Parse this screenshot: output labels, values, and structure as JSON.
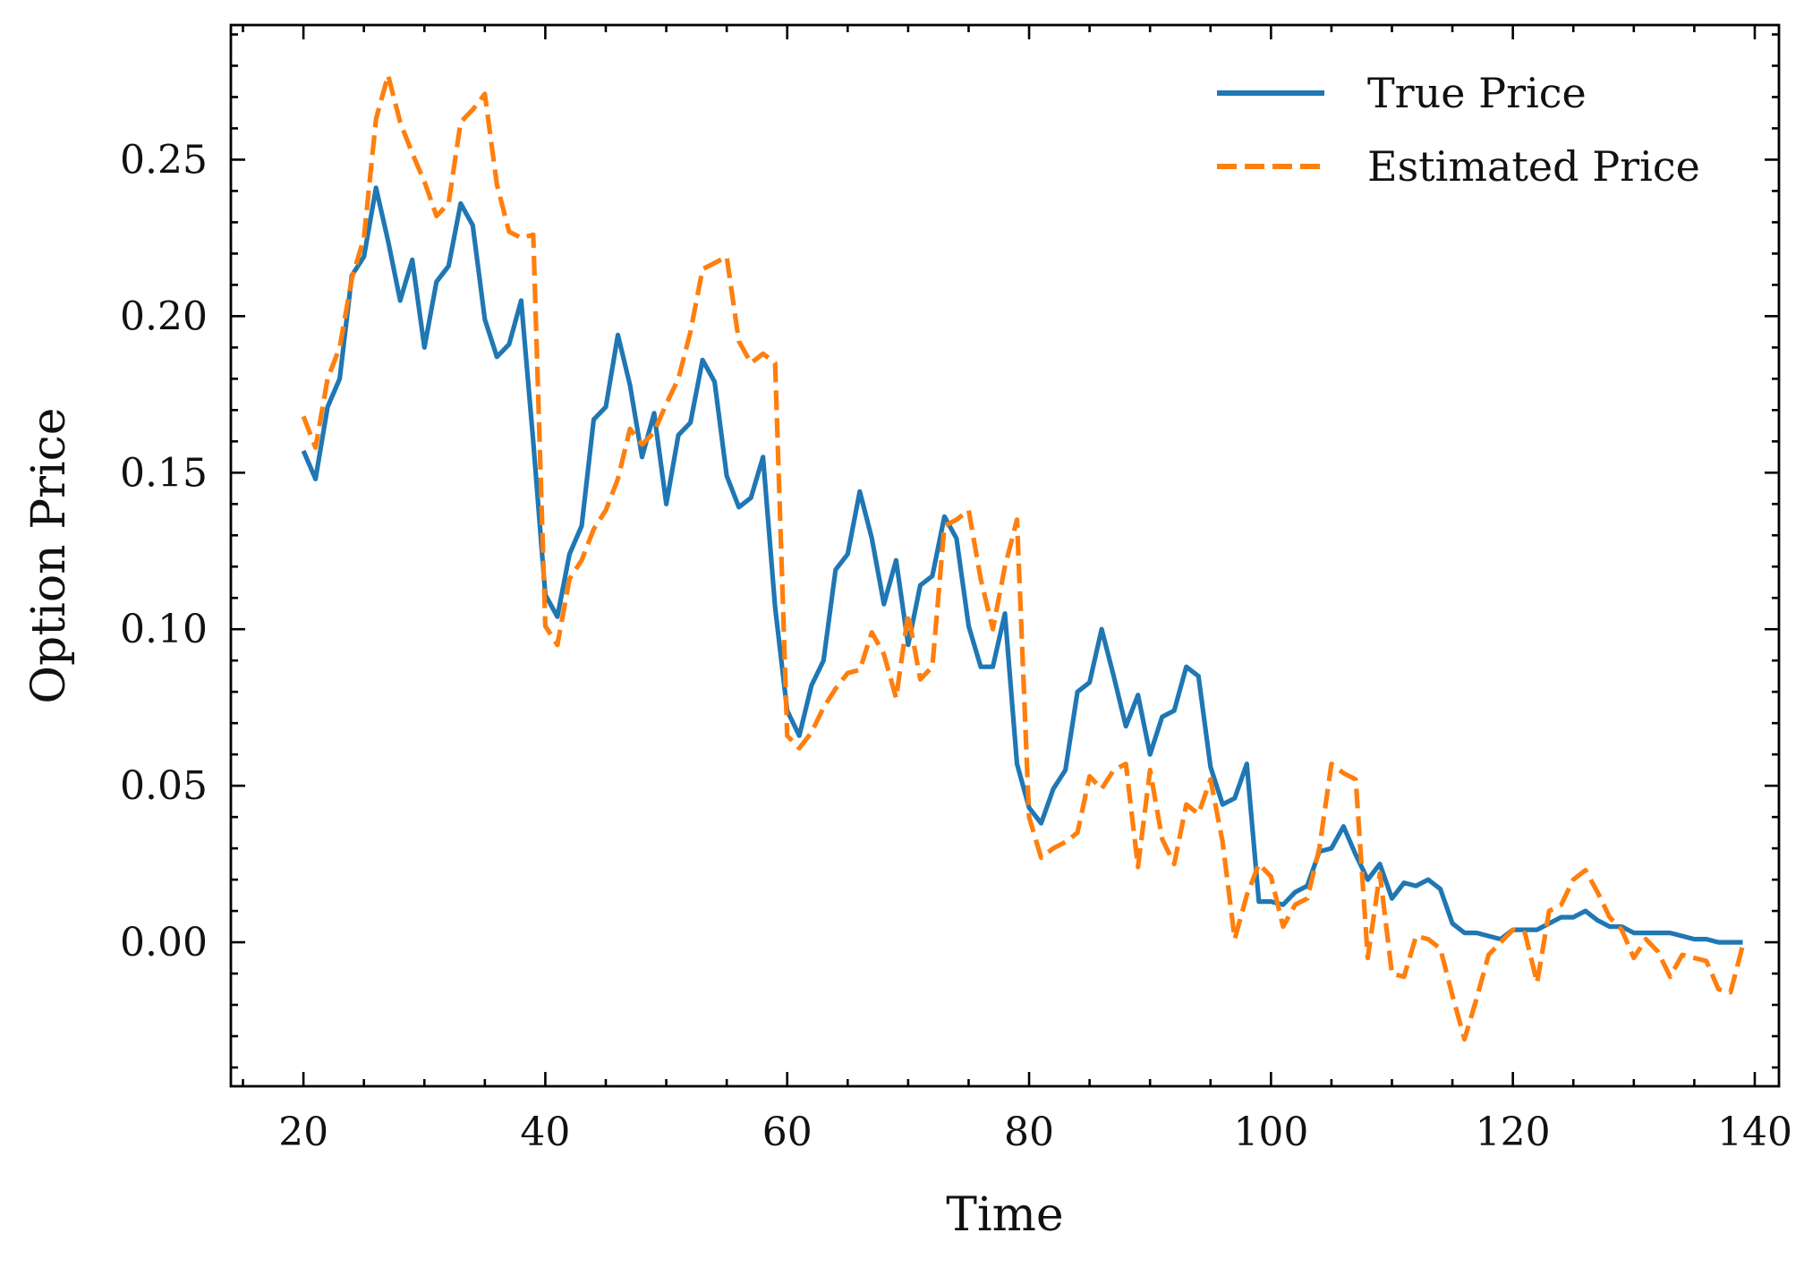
{
  "chart_data": {
    "type": "line",
    "title": "",
    "xlabel": "Time",
    "ylabel": "Option Price",
    "xlim": [
      14,
      142
    ],
    "ylim": [
      -0.046,
      0.293
    ],
    "xticks": [
      20,
      40,
      60,
      80,
      100,
      120,
      140
    ],
    "yticks": [
      0.0,
      0.05,
      0.1,
      0.15,
      0.2,
      0.25
    ],
    "xtick_labels": [
      "20",
      "40",
      "60",
      "80",
      "100",
      "120",
      "140"
    ],
    "ytick_labels": [
      "0.00",
      "0.05",
      "0.10",
      "0.15",
      "0.20",
      "0.25"
    ],
    "grid": false,
    "legend_position": "top-right",
    "series": [
      {
        "name": "True Price",
        "color": "#1f77b4",
        "style": "solid",
        "x": [
          20,
          21,
          22,
          23,
          24,
          25,
          26,
          27,
          28,
          29,
          30,
          31,
          32,
          33,
          34,
          35,
          36,
          37,
          38,
          39,
          40,
          41,
          42,
          43,
          44,
          45,
          46,
          47,
          48,
          49,
          50,
          51,
          52,
          53,
          54,
          55,
          56,
          57,
          58,
          59,
          60,
          61,
          62,
          63,
          64,
          65,
          66,
          67,
          68,
          69,
          70,
          71,
          72,
          73,
          74,
          75,
          76,
          77,
          78,
          79,
          80,
          81,
          82,
          83,
          84,
          85,
          86,
          87,
          88,
          89,
          90,
          91,
          92,
          93,
          94,
          95,
          96,
          97,
          98,
          99,
          100,
          101,
          102,
          103,
          104,
          105,
          106,
          107,
          108,
          109,
          110,
          111,
          112,
          113,
          114,
          115,
          116,
          117,
          118,
          119,
          120,
          121,
          122,
          123,
          124,
          125,
          126,
          127,
          128,
          129,
          130,
          131,
          132,
          133,
          134,
          135,
          136,
          137,
          138,
          139
        ],
        "y": [
          0.157,
          0.148,
          0.171,
          0.18,
          0.213,
          0.219,
          0.241,
          0.224,
          0.205,
          0.218,
          0.19,
          0.211,
          0.216,
          0.236,
          0.229,
          0.199,
          0.187,
          0.191,
          0.205,
          0.16,
          0.111,
          0.104,
          0.124,
          0.133,
          0.167,
          0.171,
          0.194,
          0.178,
          0.155,
          0.169,
          0.14,
          0.162,
          0.166,
          0.186,
          0.179,
          0.149,
          0.139,
          0.142,
          0.155,
          0.107,
          0.074,
          0.066,
          0.082,
          0.09,
          0.119,
          0.124,
          0.144,
          0.129,
          0.108,
          0.122,
          0.095,
          0.114,
          0.117,
          0.136,
          0.129,
          0.101,
          0.088,
          0.088,
          0.105,
          0.057,
          0.043,
          0.038,
          0.049,
          0.055,
          0.08,
          0.083,
          0.1,
          0.085,
          0.069,
          0.079,
          0.06,
          0.072,
          0.074,
          0.088,
          0.085,
          0.056,
          0.044,
          0.046,
          0.057,
          0.013,
          0.013,
          0.012,
          0.016,
          0.018,
          0.029,
          0.03,
          0.037,
          0.028,
          0.02,
          0.025,
          0.014,
          0.019,
          0.018,
          0.02,
          0.017,
          0.006,
          0.003,
          0.003,
          0.002,
          0.001,
          0.004,
          0.004,
          0.004,
          0.006,
          0.008,
          0.008,
          0.01,
          0.007,
          0.005,
          0.005,
          0.003,
          0.003,
          0.003,
          0.003,
          0.002,
          0.001,
          0.001,
          0.0,
          0.0,
          0.0
        ]
      },
      {
        "name": "Estimated Price",
        "color": "#ff7f0e",
        "style": "dashed",
        "x": [
          20,
          21,
          22,
          23,
          24,
          25,
          26,
          27,
          28,
          29,
          30,
          31,
          32,
          33,
          34,
          35,
          36,
          37,
          38,
          39,
          40,
          41,
          42,
          43,
          44,
          45,
          46,
          47,
          48,
          49,
          50,
          51,
          52,
          53,
          54,
          55,
          56,
          57,
          58,
          59,
          60,
          61,
          62,
          63,
          64,
          65,
          66,
          67,
          68,
          69,
          70,
          71,
          72,
          73,
          74,
          75,
          76,
          77,
          78,
          79,
          80,
          81,
          82,
          83,
          84,
          85,
          86,
          87,
          88,
          89,
          90,
          91,
          92,
          93,
          94,
          95,
          96,
          97,
          98,
          99,
          100,
          101,
          102,
          103,
          104,
          105,
          106,
          107,
          108,
          109,
          110,
          111,
          112,
          113,
          114,
          115,
          116,
          117,
          118,
          119,
          120,
          121,
          122,
          123,
          124,
          125,
          126,
          127,
          128,
          129,
          130,
          131,
          132,
          133,
          134,
          135,
          136,
          137,
          138,
          139
        ],
        "y": [
          0.168,
          0.158,
          0.18,
          0.19,
          0.212,
          0.225,
          0.263,
          0.277,
          0.262,
          0.252,
          0.243,
          0.232,
          0.236,
          0.262,
          0.266,
          0.271,
          0.242,
          0.227,
          0.225,
          0.226,
          0.101,
          0.095,
          0.116,
          0.122,
          0.132,
          0.138,
          0.148,
          0.164,
          0.159,
          0.163,
          0.172,
          0.18,
          0.195,
          0.215,
          0.217,
          0.219,
          0.192,
          0.185,
          0.188,
          0.185,
          0.066,
          0.062,
          0.067,
          0.075,
          0.081,
          0.086,
          0.087,
          0.099,
          0.092,
          0.078,
          0.105,
          0.084,
          0.088,
          0.133,
          0.135,
          0.138,
          0.116,
          0.1,
          0.12,
          0.135,
          0.04,
          0.027,
          0.03,
          0.032,
          0.035,
          0.053,
          0.049,
          0.055,
          0.057,
          0.024,
          0.055,
          0.033,
          0.025,
          0.044,
          0.041,
          0.052,
          0.032,
          0.001,
          0.015,
          0.025,
          0.021,
          0.005,
          0.012,
          0.014,
          0.03,
          0.057,
          0.054,
          0.052,
          -0.005,
          0.022,
          -0.01,
          -0.011,
          0.002,
          0.001,
          -0.002,
          -0.017,
          -0.031,
          -0.018,
          -0.004,
          0.0,
          0.004,
          0.003,
          -0.013,
          0.01,
          0.012,
          0.02,
          0.023,
          0.016,
          0.008,
          0.004,
          -0.005,
          0.001,
          -0.003,
          -0.011,
          -0.004,
          -0.005,
          -0.006,
          -0.015,
          -0.016,
          -0.001
        ]
      }
    ]
  }
}
